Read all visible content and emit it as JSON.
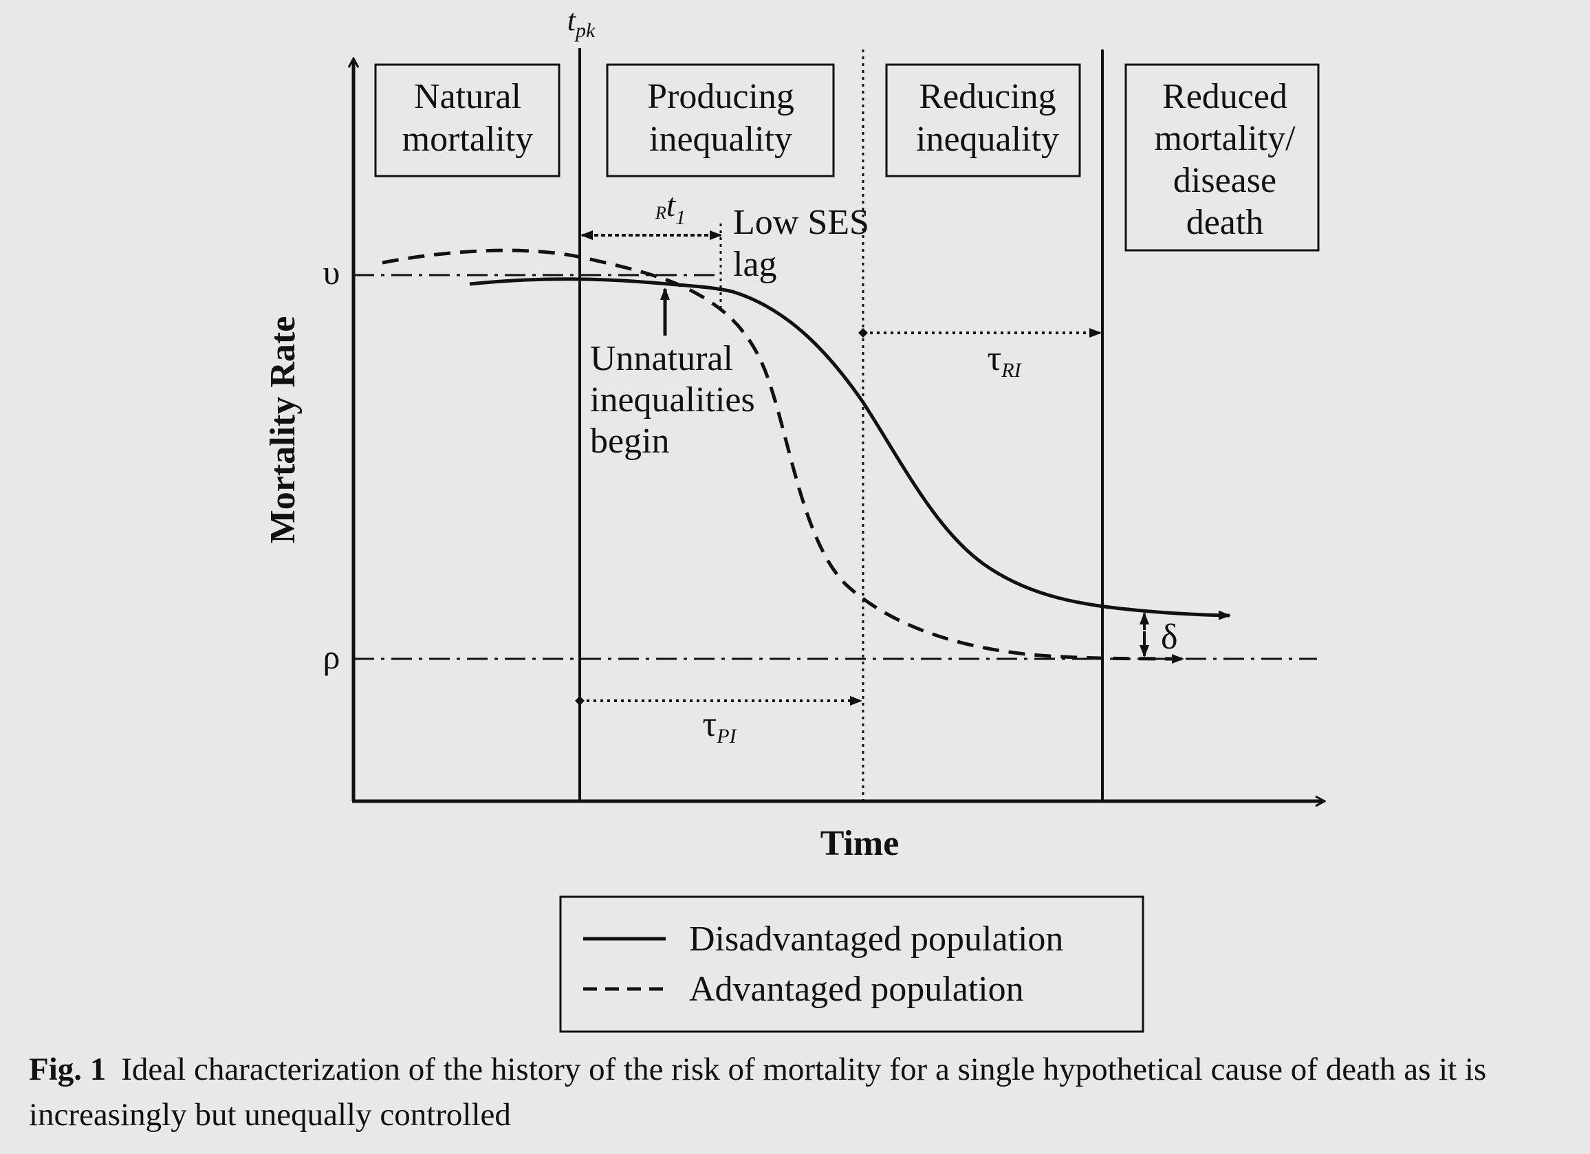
{
  "diagram": {
    "y_axis_label": "Mortality Rate",
    "x_axis_label": "Time",
    "y_level_upper": "υ",
    "y_level_lower": "ρ",
    "top_marker": {
      "main": "t",
      "sub": "pk"
    },
    "phases": [
      {
        "lines": [
          "Natural",
          "mortality"
        ]
      },
      {
        "lines": [
          "Producing",
          "inequality"
        ]
      },
      {
        "lines": [
          "Reducing",
          "inequality"
        ]
      },
      {
        "lines": [
          "Reduced",
          "mortality/",
          "disease",
          "death"
        ]
      }
    ],
    "lag_marker": {
      "pre": "R",
      "main": "t",
      "sub": "1"
    },
    "low_ses_lag": [
      "Low SES",
      "lag"
    ],
    "unnatural_note": [
      "Unnatural",
      "inequalities",
      "begin"
    ],
    "tau_ri": {
      "main": "τ",
      "sub": "RI"
    },
    "tau_pi": {
      "main": "τ",
      "sub": "PI"
    },
    "delta": "δ",
    "legend": {
      "solid": "Disadvantaged population",
      "dashed": "Advantaged population"
    }
  },
  "caption": {
    "label": "Fig. 1",
    "text": "Ideal characterization of the history of the risk of mortality for a single hypothetical cause of death as it is increasingly but unequally controlled"
  },
  "colors": {
    "background": "#e8e8e8",
    "ink": "#111111"
  }
}
